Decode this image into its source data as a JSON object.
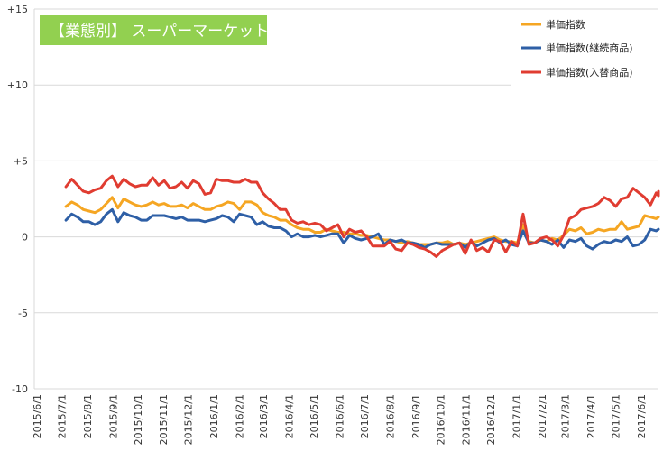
{
  "chart_data": {
    "type": "line",
    "title": "【業態別】 スーパーマーケット",
    "title_background": "#92d050",
    "title_color": "#ffffff",
    "ylim": [
      -10,
      15
    ],
    "yticks": [
      {
        "value": 15,
        "label": "+15"
      },
      {
        "value": 10,
        "label": "+10"
      },
      {
        "value": 5,
        "label": "+5"
      },
      {
        "value": 0,
        "label": "0"
      },
      {
        "value": -5,
        "label": "-5"
      },
      {
        "value": -10,
        "label": "-10"
      }
    ],
    "grid": true,
    "legend_position": "top-right",
    "x_tick_labels": [
      "2015/6/1",
      "2015/7/1",
      "2015/8/1",
      "2015/9/1",
      "2015/10/1",
      "2015/11/1",
      "2015/12/1",
      "2016/1/1",
      "2016/2/1",
      "2016/3/1",
      "2016/4/1",
      "2016/5/1",
      "2016/6/1",
      "2016/7/1",
      "2016/8/1",
      "2016/9/1",
      "2016/10/1",
      "2016/11/1",
      "2016/12/1",
      "2017/1/1",
      "2017/2/1",
      "2017/3/1",
      "2017/4/1",
      "2017/5/1",
      "2017/6/1"
    ],
    "x_start": "2015/7/6",
    "x_step_days": 7,
    "series": [
      {
        "name": "単価指数",
        "color": "#f5a623",
        "values": [
          2.0,
          2.3,
          2.1,
          1.8,
          1.7,
          1.6,
          1.8,
          2.2,
          2.6,
          1.9,
          2.5,
          2.3,
          2.1,
          2.0,
          2.1,
          2.3,
          2.1,
          2.2,
          2.0,
          2.0,
          2.1,
          1.9,
          2.2,
          2.0,
          1.8,
          1.8,
          2.0,
          2.1,
          2.3,
          2.2,
          1.8,
          2.3,
          2.3,
          2.1,
          1.6,
          1.4,
          1.3,
          1.1,
          1.1,
          0.8,
          0.6,
          0.5,
          0.5,
          0.3,
          0.3,
          0.5,
          0.4,
          0.3,
          0.3,
          0.2,
          0.2,
          0.1,
          0.1,
          0.0,
          -0.1,
          -0.2,
          -0.2,
          -0.3,
          -0.4,
          -0.3,
          -0.4,
          -0.5,
          -0.5,
          -0.5,
          -0.4,
          -0.4,
          -0.3,
          -0.5,
          -0.4,
          -0.5,
          -0.4,
          -0.3,
          -0.2,
          -0.1,
          0.0,
          -0.2,
          -0.3,
          -0.3,
          -0.4,
          0.8,
          -0.3,
          -0.4,
          -0.2,
          -0.3,
          -0.1,
          -0.2,
          0.1,
          0.5,
          0.4,
          0.6,
          0.2,
          0.3,
          0.5,
          0.4,
          0.5,
          0.5,
          1.0,
          0.5,
          0.6,
          0.7,
          1.4,
          1.3,
          1.2,
          1.3
        ]
      },
      {
        "name": "単価指数(継続商品)",
        "color": "#2e5fa6",
        "values": [
          1.1,
          1.5,
          1.3,
          1.0,
          1.0,
          0.8,
          1.0,
          1.5,
          1.8,
          1.0,
          1.6,
          1.4,
          1.3,
          1.1,
          1.1,
          1.4,
          1.4,
          1.4,
          1.3,
          1.2,
          1.3,
          1.1,
          1.1,
          1.1,
          1.0,
          1.1,
          1.2,
          1.4,
          1.3,
          1.0,
          1.5,
          1.4,
          1.3,
          0.8,
          1.0,
          0.7,
          0.6,
          0.6,
          0.4,
          0.0,
          0.2,
          0.0,
          0.0,
          0.1,
          0.0,
          0.1,
          0.2,
          0.2,
          -0.4,
          0.1,
          -0.1,
          -0.2,
          -0.1,
          0.0,
          0.2,
          -0.5,
          -0.2,
          -0.3,
          -0.2,
          -0.4,
          -0.4,
          -0.5,
          -0.7,
          -0.5,
          -0.4,
          -0.5,
          -0.5,
          -0.5,
          -0.4,
          -0.7,
          -0.3,
          -0.6,
          -0.4,
          -0.2,
          -0.1,
          -0.4,
          -0.2,
          -0.5,
          -0.6,
          0.4,
          -0.4,
          -0.4,
          -0.2,
          -0.3,
          -0.5,
          -0.2,
          -0.7,
          -0.2,
          -0.3,
          -0.1,
          -0.6,
          -0.8,
          -0.5,
          -0.3,
          -0.4,
          -0.2,
          -0.3,
          0.0,
          -0.6,
          -0.5,
          -0.2,
          0.5,
          0.4,
          0.5
        ]
      },
      {
        "name": "単価指数(入替商品)",
        "color": "#e03c31",
        "values": [
          3.3,
          3.8,
          3.4,
          3.0,
          2.9,
          3.1,
          3.2,
          3.7,
          4.0,
          3.3,
          3.8,
          3.5,
          3.3,
          3.4,
          3.4,
          3.9,
          3.4,
          3.7,
          3.2,
          3.3,
          3.6,
          3.2,
          3.7,
          3.5,
          2.8,
          2.9,
          3.8,
          3.7,
          3.7,
          3.6,
          3.6,
          3.8,
          3.6,
          3.6,
          2.9,
          2.5,
          2.2,
          1.8,
          1.8,
          1.1,
          0.9,
          1.0,
          0.8,
          0.9,
          0.8,
          0.4,
          0.6,
          0.8,
          0.0,
          0.5,
          0.3,
          0.4,
          0.0,
          -0.6,
          -0.6,
          -0.6,
          -0.3,
          -0.8,
          -0.9,
          -0.4,
          -0.5,
          -0.7,
          -0.8,
          -1.0,
          -1.3,
          -0.9,
          -0.7,
          -0.5,
          -0.4,
          -1.1,
          -0.2,
          -0.9,
          -0.7,
          -1.0,
          -0.2,
          -0.3,
          -1.0,
          -0.3,
          -0.6,
          1.5,
          -0.5,
          -0.4,
          -0.1,
          0.0,
          -0.2,
          -0.6,
          0.1,
          1.2,
          1.4,
          1.8,
          1.9,
          2.0,
          2.2,
          2.6,
          2.4,
          2.0,
          2.5,
          2.6,
          3.2,
          2.9,
          2.6,
          2.1,
          2.9,
          2.7,
          3.0
        ]
      }
    ]
  }
}
